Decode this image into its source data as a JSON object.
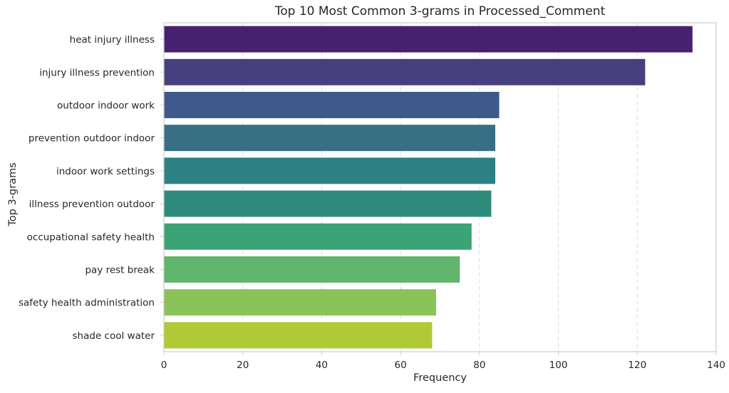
{
  "chart_data": {
    "type": "bar",
    "orientation": "horizontal",
    "title": "Top 10 Most Common 3-grams in Processed_Comment",
    "xlabel": "Frequency",
    "ylabel": "Top 3-grams",
    "categories": [
      "heat injury illness",
      "injury illness prevention",
      "outdoor indoor work",
      "prevention outdoor indoor",
      "indoor work settings",
      "illness prevention outdoor",
      "occupational safety health",
      "pay rest break",
      "safety health administration",
      "shade cool water"
    ],
    "values": [
      134,
      122,
      85,
      84,
      84,
      83,
      78,
      75,
      69,
      68
    ],
    "colors": [
      "#482071",
      "#46407f",
      "#3e5a8a",
      "#386f85",
      "#2d8083",
      "#2e8b7c",
      "#3ca375",
      "#5fb66c",
      "#8ac358",
      "#b0c936"
    ],
    "xlim": [
      0,
      140
    ],
    "xticks": [
      "0",
      "20",
      "40",
      "60",
      "80",
      "100",
      "120",
      "140"
    ],
    "grid": "x-dashed"
  }
}
